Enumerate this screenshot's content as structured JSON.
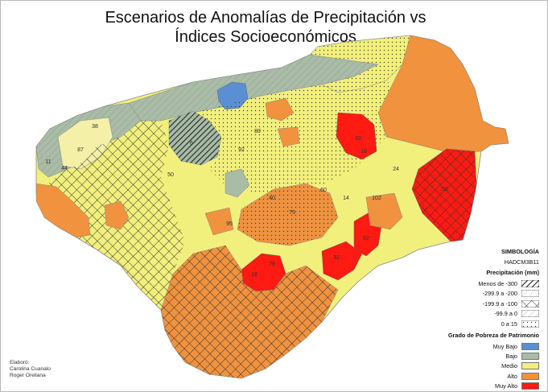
{
  "title_line1": "Escenarios de Anomalías de Precipitación vs",
  "title_line2": "Índices Socioeconómicos",
  "legend": {
    "heading": "SIMBOLOGÍA",
    "model": "HADCM3B11",
    "precip_heading": "Precipitación (mm)",
    "precip_items": [
      {
        "label": "Menos de -300",
        "pattern": "dense-diagonal"
      },
      {
        "label": "-299.9 a -200",
        "pattern": "dotted-diagonal"
      },
      {
        "label": "-199.9 a -100",
        "pattern": "crosshatch"
      },
      {
        "label": "-99.9 a 0",
        "pattern": "light-diagonal"
      },
      {
        "label": "0 a 15",
        "pattern": "dots"
      }
    ],
    "poverty_heading": "Grado de Pobreza de Patrimonio",
    "poverty_items": [
      {
        "label": "Muy Bajo",
        "color": "#5b8fd4"
      },
      {
        "label": "Bajo",
        "color": "#a8bca6"
      },
      {
        "label": "Medio",
        "color": "#f2f07c"
      },
      {
        "label": "Alto",
        "color": "#f0923e"
      },
      {
        "label": "Muy Alto",
        "color": "#ff1a12"
      }
    ]
  },
  "credits": {
    "line1": "Elaboró:",
    "line2": "Carolina Cuanalo",
    "line3": "Roger Orellana"
  },
  "map_labels": [
    "38",
    "87",
    "44",
    "11",
    "50",
    "6",
    "82",
    "102",
    "58",
    "79",
    "18",
    "32",
    "33",
    "80",
    "75",
    "40",
    "60",
    "24",
    "95",
    "16",
    "92",
    "14"
  ]
}
